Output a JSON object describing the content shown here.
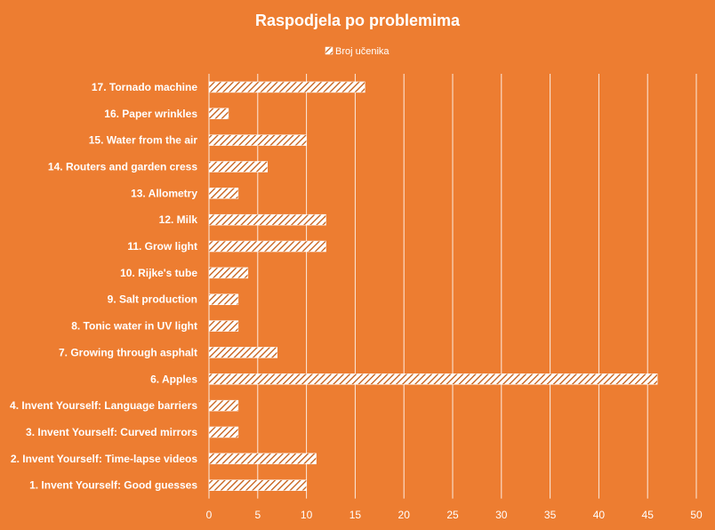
{
  "chart_data": {
    "type": "bar",
    "orientation": "horizontal",
    "title": "Raspodjela  po  problemima",
    "categories": [
      "17. Tornado machine",
      "16. Paper wrinkles",
      "15. Water from the air",
      "14. Routers and garden cress",
      "13. Allometry",
      "12. Milk",
      "11. Grow light",
      "10. Rijke's tube",
      "9. Salt production",
      "8. Tonic water in UV light",
      "7. Growing through asphalt",
      "6. Apples",
      "4. Invent Yourself: Language barriers",
      "3. Invent Yourself: Curved mirrors",
      "2. Invent Yourself: Time-lapse videos",
      "1. Invent Yourself: Good guesses"
    ],
    "series": [
      {
        "name": "Broj učenika",
        "values": [
          16,
          2,
          10,
          6,
          3,
          12,
          12,
          4,
          3,
          3,
          7,
          46,
          3,
          3,
          11,
          10
        ]
      }
    ],
    "xlim": [
      0,
      50
    ],
    "xticks": [
      "0",
      "5",
      "10",
      "15",
      "20",
      "25",
      "30",
      "35",
      "40",
      "45",
      "50"
    ],
    "grid": true,
    "legend_position": "top",
    "colors": {
      "background": "#ED7D31",
      "bar_stripe": "#C55A11",
      "bar_fill": "#FFFFFF",
      "text": "#FFFFFF"
    }
  }
}
